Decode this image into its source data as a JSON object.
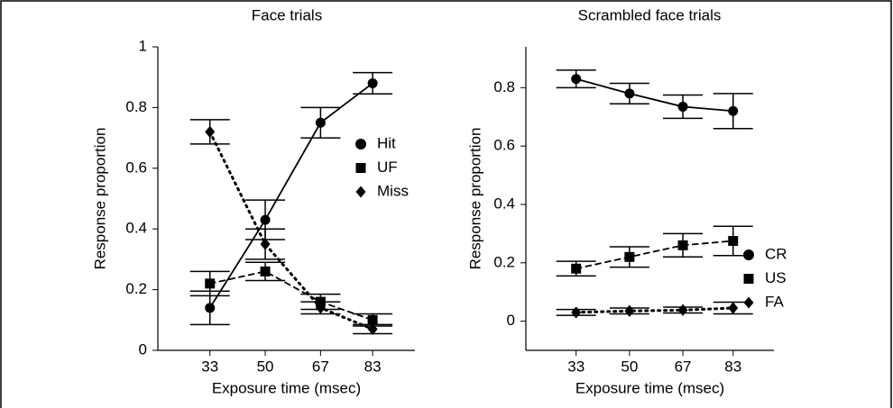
{
  "chart_data": [
    {
      "type": "line",
      "title": "Face trials",
      "xlabel": "Exposure time (msec)",
      "ylabel": "Response proportion",
      "x": [
        33,
        50,
        67,
        83
      ],
      "xlim": [
        17,
        96
      ],
      "xticks": [
        33,
        50,
        67,
        83
      ],
      "ylim": [
        0,
        1
      ],
      "yticks": [
        0,
        0.2,
        0.4,
        0.6,
        0.8,
        1
      ],
      "series": [
        {
          "name": "Hit",
          "color": "#000000",
          "marker": "circle",
          "line_style": "solid",
          "values": [
            0.14,
            0.43,
            0.75,
            0.88
          ],
          "errors": [
            0.055,
            0.065,
            0.05,
            0.035
          ]
        },
        {
          "name": "UF",
          "color": "#000000",
          "marker": "square",
          "line_style": "dashed",
          "values": [
            0.22,
            0.26,
            0.16,
            0.1
          ],
          "errors": [
            0.04,
            0.03,
            0.025,
            0.02
          ]
        },
        {
          "name": "Miss",
          "color": "#000000",
          "marker": "diamond",
          "line_style": "dotted",
          "values": [
            0.72,
            0.35,
            0.14,
            0.07
          ],
          "errors": [
            0.04,
            0.05,
            0.02,
            0.015
          ]
        }
      ]
    },
    {
      "type": "line",
      "title": "Scrambled face trials",
      "xlabel": "Exposure time (msec)",
      "ylabel": "Response proportion",
      "x": [
        33,
        50,
        67,
        83
      ],
      "xlim": [
        17,
        96
      ],
      "xticks": [
        33,
        50,
        67,
        83
      ],
      "ylim": [
        -0.1,
        0.94
      ],
      "yticks": [
        0,
        0.2,
        0.4,
        0.6,
        0.8
      ],
      "series": [
        {
          "name": "CR",
          "color": "#000000",
          "marker": "circle",
          "line_style": "solid",
          "values": [
            0.83,
            0.78,
            0.735,
            0.72
          ],
          "errors": [
            0.03,
            0.035,
            0.04,
            0.06
          ]
        },
        {
          "name": "US",
          "color": "#000000",
          "marker": "square",
          "line_style": "dashed",
          "values": [
            0.18,
            0.22,
            0.26,
            0.275
          ],
          "errors": [
            0.025,
            0.035,
            0.04,
            0.05
          ]
        },
        {
          "name": "FA",
          "color": "#000000",
          "marker": "diamond",
          "line_style": "dotted",
          "values": [
            0.03,
            0.035,
            0.038,
            0.045
          ],
          "errors": [
            0.01,
            0.01,
            0.01,
            0.02
          ]
        }
      ]
    }
  ]
}
